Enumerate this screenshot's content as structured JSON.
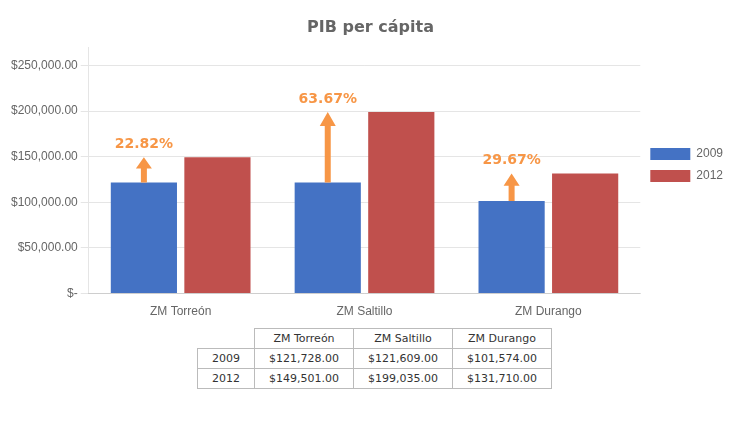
{
  "chart_data": {
    "type": "bar",
    "title": "PIB per cápita",
    "categories": [
      "ZM Torreón",
      "ZM Saltillo",
      "ZM Durango"
    ],
    "series": [
      {
        "name": "2009",
        "color": "#4472C4",
        "values": [
          121728,
          121609,
          101574
        ],
        "value_labels": [
          "$121,728.00",
          "$121,609.00",
          "$101,574.00"
        ]
      },
      {
        "name": "2012",
        "color": "#C0504D",
        "values": [
          149501,
          199035,
          131710
        ],
        "value_labels": [
          "$149,501.00",
          "$199,035.00",
          "$131,710.00"
        ]
      }
    ],
    "ylim": [
      0,
      270000
    ],
    "yticks": [
      {
        "value": 0,
        "label": "$-"
      },
      {
        "value": 50000,
        "label": "$50,000.00"
      },
      {
        "value": 100000,
        "label": "$100,000.00"
      },
      {
        "value": 150000,
        "label": "$150,000.00"
      },
      {
        "value": 200000,
        "label": "$200,000.00"
      },
      {
        "value": 250000,
        "label": "$250,000.00"
      }
    ],
    "grid": true,
    "legend": "right",
    "annotations": [
      {
        "category": "ZM Torreón",
        "from": 121728,
        "to": 149501,
        "text": "22.82%",
        "color": "#F79646"
      },
      {
        "category": "ZM Saltillo",
        "from": 121609,
        "to": 199035,
        "text": "63.67%",
        "color": "#F79646"
      },
      {
        "category": "ZM Durango",
        "from": 101574,
        "to": 131710,
        "text": "29.67%",
        "color": "#F79646"
      }
    ]
  }
}
